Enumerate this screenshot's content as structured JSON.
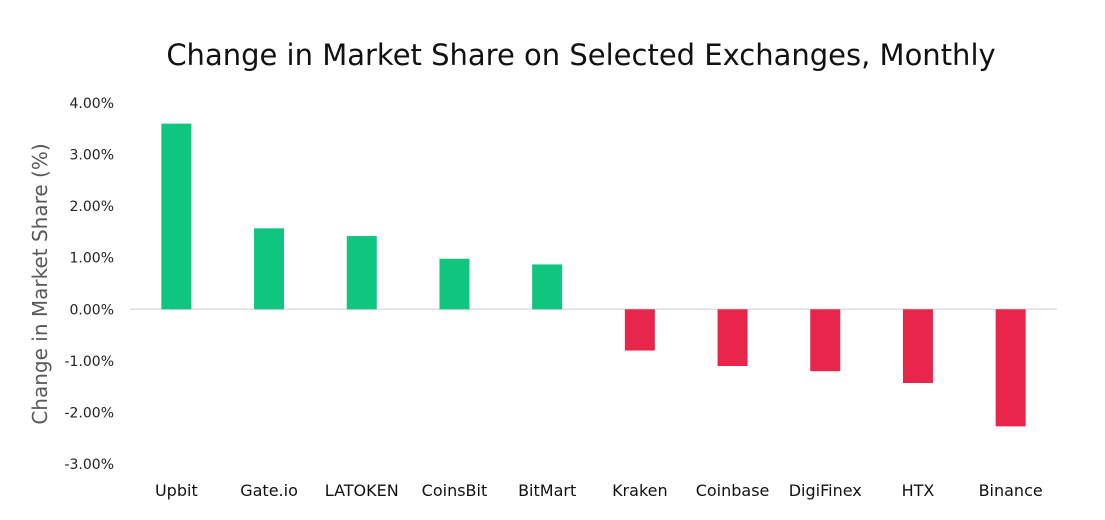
{
  "chart_data": {
    "type": "bar",
    "title": "Change in Market Share on Selected Exchanges, Monthly",
    "xlabel": "",
    "ylabel": "Change in Market Share (%)",
    "ylim": [
      -3.0,
      4.0
    ],
    "yticks": [
      4.0,
      3.0,
      2.0,
      1.0,
      0.0,
      -1.0,
      -2.0,
      -3.0
    ],
    "ytick_labels": [
      "4.00%",
      "3.00%",
      "2.00%",
      "1.00%",
      "0.00%",
      "-1.00%",
      "-2.00%",
      "-3.00%"
    ],
    "categories": [
      "Upbit",
      "Gate.io",
      "LATOKEN",
      "CoinsBit",
      "BitMart",
      "Kraken",
      "Coinbase",
      "DigiFinex",
      "HTX",
      "Binance"
    ],
    "values": [
      3.6,
      1.57,
      1.42,
      0.98,
      0.87,
      -0.8,
      -1.1,
      -1.2,
      -1.43,
      -2.27
    ],
    "grid": false,
    "legend": "none",
    "colors": {
      "positive": "#10c57f",
      "negative": "#e8264b",
      "zero_line": "#d9d9d9"
    }
  }
}
